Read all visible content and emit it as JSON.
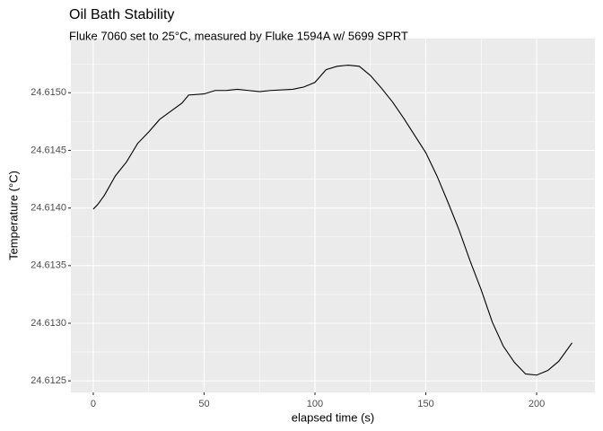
{
  "chart_data": {
    "type": "line",
    "title": "Oil Bath Stability",
    "subtitle": "Fluke 7060 set to 25°C, measured by Fluke 1594A w/ 5699 SPRT",
    "x_label": "elapsed time (s)",
    "y_label": "Temperature (°C)",
    "x": [
      0,
      2,
      5,
      10,
      15,
      20,
      25,
      30,
      35,
      40,
      43,
      50,
      55,
      60,
      65,
      70,
      75,
      80,
      90,
      95,
      100,
      105,
      110,
      115,
      120,
      125,
      130,
      135,
      140,
      145,
      150,
      155,
      160,
      165,
      170,
      175,
      180,
      185,
      190,
      195,
      200,
      205,
      210,
      216
    ],
    "series": [
      {
        "color": "#000000",
        "values": [
          24.61399,
          24.61403,
          24.61411,
          24.61428,
          24.6144,
          24.61456,
          24.61466,
          24.61477,
          24.61484,
          24.61491,
          24.61498,
          24.61499,
          24.61502,
          24.61502,
          24.61503,
          24.61502,
          24.61501,
          24.61502,
          24.61503,
          24.61505,
          24.61509,
          24.6152,
          24.61523,
          24.61524,
          24.61523,
          24.61515,
          24.61504,
          24.61492,
          24.61478,
          24.61463,
          24.61448,
          24.61428,
          24.61405,
          24.61381,
          24.61354,
          24.61329,
          24.61301,
          24.6128,
          24.61266,
          24.61256,
          24.61255,
          24.61259,
          24.61267,
          24.61283
        ]
      }
    ],
    "xlim": [
      -10.1,
      226.3
    ],
    "ylim": [
      24.6124,
      24.61547
    ],
    "xticks": [
      0,
      50,
      100,
      150,
      200
    ],
    "yticks": [
      24.6125,
      {
        "value": 24.613,
        "label": "24.6130"
      },
      24.6135,
      {
        "value": 24.614,
        "label": "24.6140"
      },
      24.6145,
      {
        "value": 24.615,
        "label": "24.6150"
      }
    ],
    "x_minor_ticks": [
      25,
      75,
      125,
      175
    ],
    "y_minor_ticks": [
      24.61275,
      24.61325,
      24.61375,
      24.61425,
      24.61475,
      24.61525
    ],
    "grid": true
  }
}
